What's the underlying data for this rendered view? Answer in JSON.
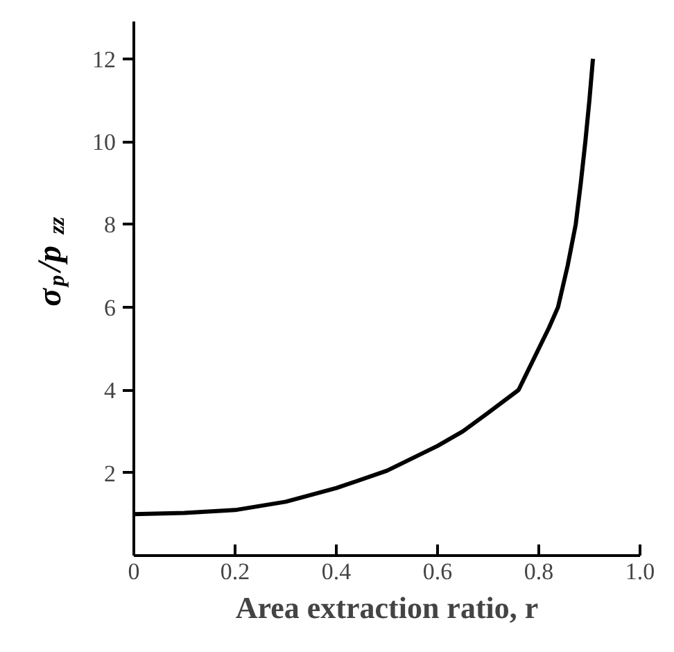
{
  "chart_data": {
    "type": "line",
    "xlabel": "Area extraction ratio, r",
    "ylabel": "σ$_{p}$/p$_{zz}$",
    "x": [
      0,
      0.1,
      0.2,
      0.3,
      0.4,
      0.5,
      0.6,
      0.65,
      0.7,
      0.76,
      0.8,
      0.82,
      0.838,
      0.857,
      0.873,
      0.883,
      0.892,
      0.9,
      0.907
    ],
    "series": [
      {
        "color": "#000000",
        "values": [
          1.0,
          1.03,
          1.1,
          1.3,
          1.63,
          2.05,
          2.65,
          3.0,
          3.45,
          4.0,
          5.0,
          5.5,
          6.0,
          7.0,
          8.0,
          9.0,
          10.0,
          11.0,
          12.0
        ]
      }
    ],
    "xlim": [
      0,
      1.0
    ],
    "ylim": [
      0,
      12.9
    ],
    "xticks": [
      {
        "value": 0,
        "label": "0"
      },
      0.2,
      0.4,
      0.6,
      0.8,
      {
        "value": 1.0,
        "label": "1.0"
      }
    ],
    "yticks": [
      2,
      4,
      6,
      8,
      10,
      12
    ],
    "grid": false,
    "marker": "none",
    "line_style": "solid"
  }
}
